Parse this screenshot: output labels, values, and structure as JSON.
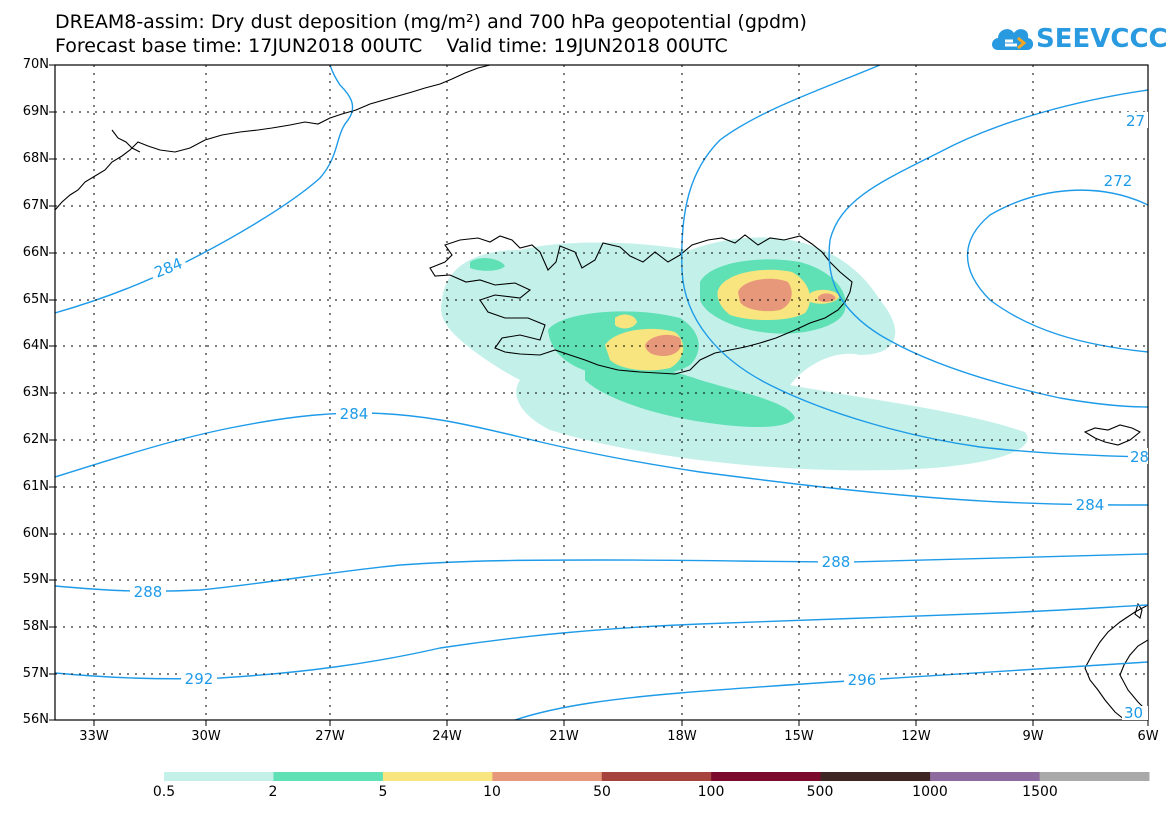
{
  "title_line1": "DREAM8-assim: Dry dust deposition (mg/m²) and 700 hPa geopotential (gpdm)",
  "title_line2": "Forecast base time: 17JUN2018 00UTC    Valid time: 19JUN2018 00UTC",
  "logo_text": "SEEVCCC",
  "lat_labels": [
    "70N",
    "69N",
    "68N",
    "67N",
    "66N",
    "65N",
    "64N",
    "63N",
    "62N",
    "61N",
    "60N",
    "59N",
    "58N",
    "57N",
    "56N"
  ],
  "lon_labels": [
    "33W",
    "30W",
    "27W",
    "24W",
    "21W",
    "18W",
    "15W",
    "12W",
    "9W",
    "6W"
  ],
  "contour_labels": {
    "c284_a": "284",
    "c284_b": "284",
    "c284_c": "284",
    "c288_a": "288",
    "c288_b": "288",
    "c292": "292",
    "c296": "296",
    "c272": "272",
    "c27_edge": "27",
    "c28_edge": "28",
    "c30_edge": "30"
  },
  "colorbar": {
    "labels": [
      "0.5",
      "2",
      "5",
      "10",
      "50",
      "100",
      "500",
      "1000",
      "1500"
    ],
    "colors": [
      "#c3f1ea",
      "#5fe0b5",
      "#f9e57f",
      "#e8987a",
      "#a5433c",
      "#7b0a2c",
      "#3e2722",
      "#8e6b9f",
      "#a9a9a9"
    ]
  },
  "colors": {
    "contour": "#1e9be8",
    "coast": "#000000",
    "grid": "#000000"
  }
}
